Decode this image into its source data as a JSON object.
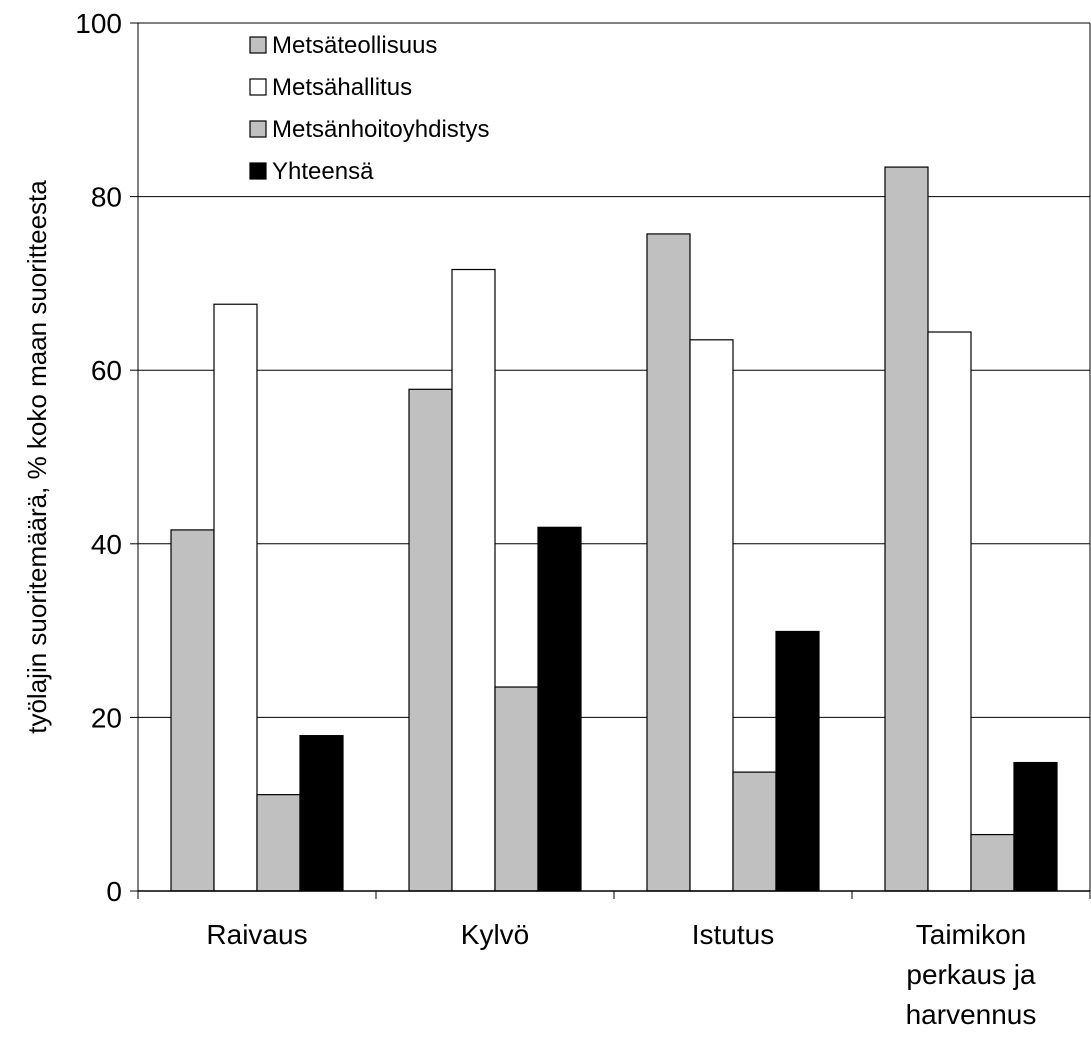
{
  "chart_data": {
    "type": "bar",
    "title": "",
    "xlabel": "",
    "ylabel": "työlajin suoritemäärä, % koko maan suoritteesta",
    "ylim": [
      0,
      100
    ],
    "yticks": [
      0,
      20,
      40,
      60,
      80,
      100
    ],
    "grid": true,
    "legend_position": "top-left",
    "categories": [
      [
        "Raivaus"
      ],
      [
        "Kylvö"
      ],
      [
        "Istutus"
      ],
      [
        "Taimikon",
        "perkaus ja",
        "harvennus"
      ]
    ],
    "series": [
      {
        "name": "Metsäteollisuus",
        "color": "#c0c0c0",
        "values": [
          41.6,
          57.8,
          75.7,
          83.4
        ]
      },
      {
        "name": "Metsähallitus",
        "color": "#ffffff",
        "values": [
          67.6,
          71.6,
          63.5,
          64.4
        ]
      },
      {
        "name": "Metsänhoitoyhdistys",
        "color": "#c0c0c0",
        "values": [
          11.1,
          23.5,
          13.7,
          6.5
        ]
      },
      {
        "name": "Yhteensä",
        "color": "#000000",
        "values": [
          17.9,
          41.9,
          29.9,
          14.8
        ]
      }
    ]
  }
}
